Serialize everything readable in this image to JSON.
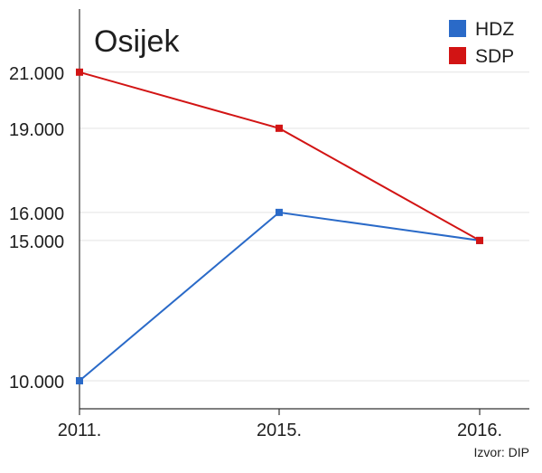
{
  "chart_data": {
    "type": "line",
    "title": "Osijek",
    "categories": [
      "2011.",
      "2015.",
      "2016."
    ],
    "series": [
      {
        "name": "HDZ",
        "values": [
          10000,
          16000,
          15000
        ],
        "color": "#2a6ac8"
      },
      {
        "name": "SDP",
        "values": [
          21000,
          19000,
          15000
        ],
        "color": "#d21414"
      }
    ],
    "y_ticks": [
      {
        "value": 21000,
        "label": "21.000"
      },
      {
        "value": 19000,
        "label": "19.000"
      },
      {
        "value": 16000,
        "label": "16.000"
      },
      {
        "value": 15000,
        "label": "15.000"
      },
      {
        "value": 10000,
        "label": "10.000"
      }
    ],
    "ylim": [
      9000,
      23250
    ],
    "xlabel": "",
    "ylabel": "",
    "grid": true,
    "legend_position": "top-right",
    "source_note": "Izvor: DIP"
  }
}
